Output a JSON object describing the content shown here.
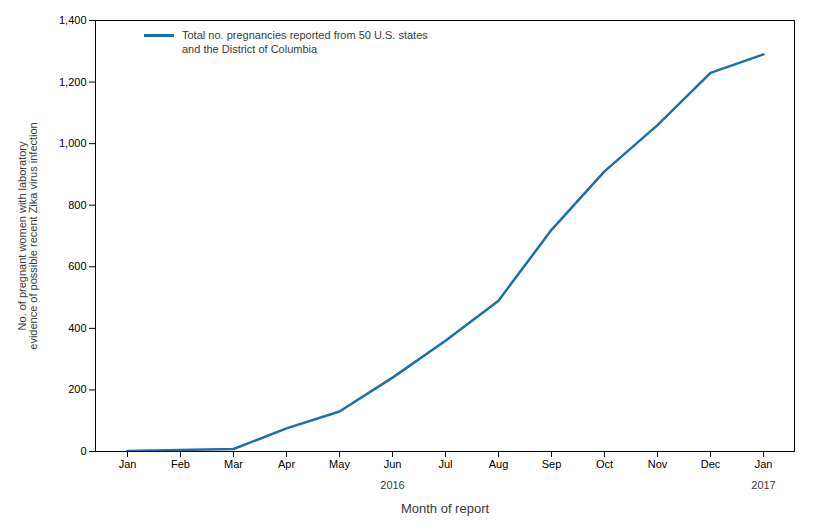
{
  "chart_data": {
    "type": "line",
    "categories": [
      "Jan",
      "Feb",
      "Mar",
      "Apr",
      "May",
      "Jun",
      "Jul",
      "Aug",
      "Sep",
      "Oct",
      "Nov",
      "Dec",
      "Jan"
    ],
    "series": [
      {
        "name": "Total no. pregnancies reported from 50 U.S. states\nand the District of Columbia",
        "color": "#1a6fad",
        "values": [
          2,
          5,
          8,
          75,
          130,
          240,
          360,
          490,
          720,
          910,
          1060,
          1230,
          1290
        ]
      }
    ],
    "ylim": [
      0,
      1400
    ],
    "yticks": [
      0,
      200,
      400,
      600,
      800,
      {
        "value": 1000,
        "label": "1,000"
      },
      {
        "value": 1200,
        "label": "1,200"
      },
      {
        "value": 1400,
        "label": "1,400"
      }
    ],
    "ylabel": "No. of pregnant women with laboratory\nevidence of possible recent Zika virus infection",
    "xlabel": "Month of report",
    "annotations": [
      {
        "text": "2016",
        "x": 6
      },
      {
        "text": "2017",
        "x": 13
      }
    ],
    "grid": false,
    "legend": "upper left"
  }
}
